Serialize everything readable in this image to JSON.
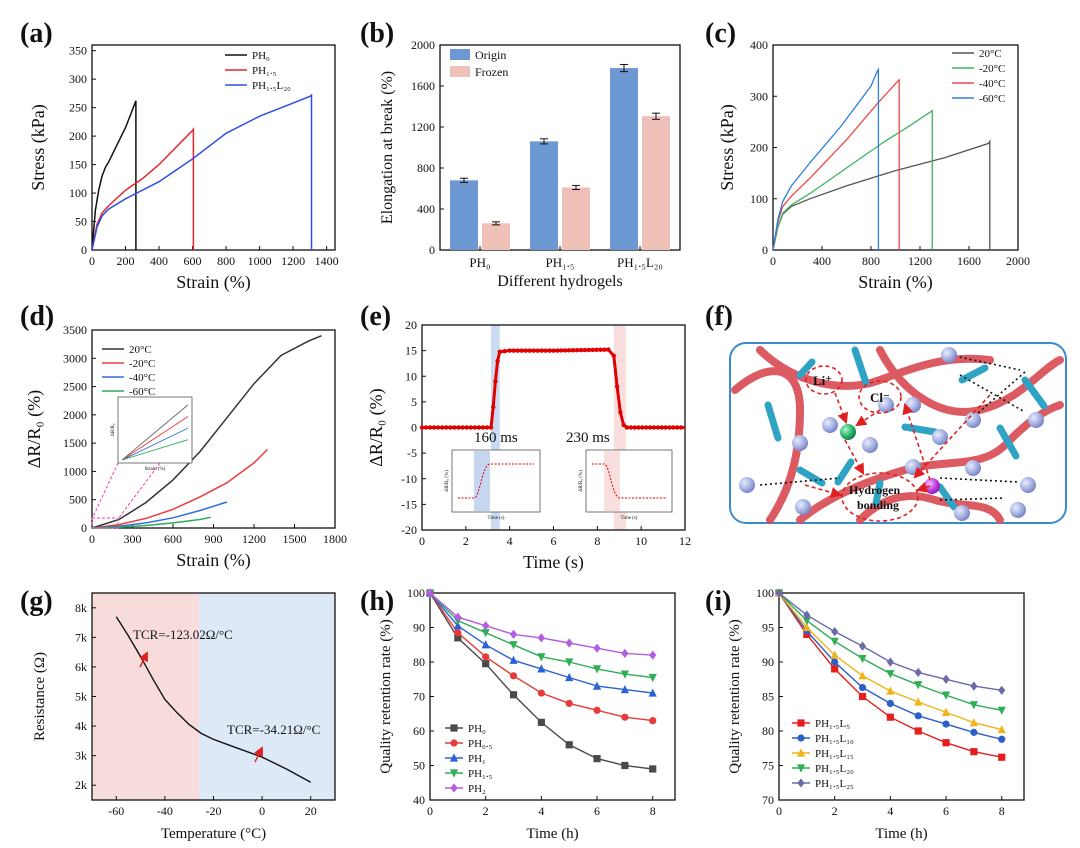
{
  "chart_data": [
    {
      "panel": "(a)",
      "type": "line",
      "xlabel": "Strain (%)",
      "ylabel": "Stress (kPa)",
      "xlim": [
        0,
        1450
      ],
      "ylim": [
        0,
        360
      ],
      "xticks": [
        "0",
        "200",
        "400",
        "600",
        "800",
        "1000",
        "1200",
        "1400"
      ],
      "yticks": [
        "0",
        "50",
        "100",
        "150",
        "200",
        "250",
        "300",
        "350"
      ],
      "series": [
        {
          "name": "PH₀",
          "color": "#111111",
          "x": [
            0,
            20,
            40,
            60,
            80,
            100,
            150,
            200,
            240,
            262,
            262
          ],
          "y": [
            0,
            70,
            105,
            130,
            145,
            155,
            185,
            215,
            245,
            262,
            0
          ]
        },
        {
          "name": "PH₁.₅",
          "color": "#e8262d",
          "x": [
            0,
            30,
            60,
            100,
            200,
            300,
            400,
            500,
            560,
            600,
            605,
            605
          ],
          "y": [
            0,
            45,
            65,
            78,
            105,
            125,
            150,
            180,
            198,
            210,
            212,
            0
          ]
        },
        {
          "name": "PH₁.₅L₂₀",
          "color": "#2e4fe6",
          "x": [
            0,
            30,
            60,
            100,
            200,
            400,
            600,
            800,
            1000,
            1200,
            1300,
            1310,
            1310
          ],
          "y": [
            0,
            40,
            60,
            72,
            90,
            120,
            160,
            205,
            235,
            258,
            270,
            272,
            0
          ]
        }
      ]
    },
    {
      "panel": "(b)",
      "type": "bar",
      "xlabel": "Different hydrogels",
      "ylabel": "Elongation at break (%)",
      "categories": [
        "PH₀",
        "PH₁.₅",
        "PH₁.₅L₂₀"
      ],
      "ylim": [
        0,
        2000
      ],
      "yticks": [
        "0",
        "400",
        "800",
        "1200",
        "1600",
        "2000"
      ],
      "series": [
        {
          "name": "Origin",
          "color": "#6e98d2",
          "values": [
            680,
            1060,
            1775
          ],
          "errors": [
            20,
            25,
            35
          ]
        },
        {
          "name": "Frozen",
          "color": "#efc0b8",
          "values": [
            260,
            610,
            1305
          ],
          "errors": [
            15,
            20,
            30
          ]
        }
      ]
    },
    {
      "panel": "(c)",
      "type": "line",
      "xlabel": "Strain (%)",
      "ylabel": "Stress (kPa)",
      "xlim": [
        0,
        2000
      ],
      "ylim": [
        0,
        400
      ],
      "xticks": [
        "0",
        "400",
        "800",
        "1200",
        "1600",
        "2000"
      ],
      "yticks": [
        "0",
        "100",
        "200",
        "300",
        "400"
      ],
      "series": [
        {
          "name": "20°C",
          "color": "#555555",
          "x": [
            0,
            40,
            80,
            150,
            300,
            600,
            1000,
            1400,
            1760,
            1770,
            1770
          ],
          "y": [
            0,
            45,
            70,
            85,
            100,
            125,
            155,
            180,
            208,
            212,
            0
          ]
        },
        {
          "name": "-20°C",
          "color": "#3cb55b",
          "x": [
            0,
            40,
            80,
            150,
            300,
            600,
            900,
            1100,
            1290,
            1300,
            1300
          ],
          "y": [
            0,
            45,
            72,
            88,
            110,
            160,
            210,
            240,
            270,
            272,
            0
          ]
        },
        {
          "name": "-40°C",
          "color": "#ee4848",
          "x": [
            0,
            40,
            80,
            150,
            300,
            600,
            850,
            1020,
            1030,
            1030
          ],
          "y": [
            0,
            55,
            85,
            105,
            140,
            215,
            285,
            330,
            332,
            0
          ]
        },
        {
          "name": "-60°C",
          "color": "#2f7fe0",
          "x": [
            0,
            40,
            80,
            150,
            300,
            550,
            800,
            850,
            860,
            860
          ],
          "y": [
            0,
            60,
            95,
            125,
            170,
            240,
            320,
            348,
            352,
            0
          ]
        }
      ]
    },
    {
      "panel": "(d)",
      "type": "line",
      "xlabel": "Strain (%)",
      "ylabel": "ΔR/R₀ (%)",
      "xlim": [
        0,
        1800
      ],
      "ylim": [
        0,
        3500
      ],
      "xticks": [
        "0",
        "300",
        "600",
        "900",
        "1200",
        "1500",
        "1800"
      ],
      "yticks": [
        "0",
        "500",
        "1000",
        "1500",
        "2000",
        "2500",
        "3000",
        "3500"
      ],
      "series": [
        {
          "name": "20°C",
          "color": "#333333",
          "x": [
            0,
            200,
            400,
            600,
            800,
            1000,
            1200,
            1400,
            1600,
            1700
          ],
          "y": [
            0,
            150,
            450,
            850,
            1350,
            1950,
            2550,
            3050,
            3300,
            3400
          ]
        },
        {
          "name": "-20°C",
          "color": "#ee3b3b",
          "x": [
            0,
            200,
            400,
            600,
            800,
            1000,
            1200,
            1300
          ],
          "y": [
            0,
            60,
            170,
            330,
            550,
            800,
            1150,
            1390
          ]
        },
        {
          "name": "-40°C",
          "color": "#2f6fe0",
          "x": [
            0,
            200,
            400,
            600,
            800,
            1000
          ],
          "y": [
            0,
            30,
            90,
            180,
            310,
            460
          ]
        },
        {
          "name": "-60°C",
          "color": "#2ea95a",
          "x": [
            0,
            200,
            400,
            600,
            800,
            880
          ],
          "y": [
            0,
            15,
            45,
            90,
            150,
            190
          ]
        }
      ],
      "inset": {
        "xlabel": "Strain (%)",
        "ylabel": "ΔR/R₀"
      }
    },
    {
      "panel": "(e)",
      "type": "line",
      "xlabel": "Time (s)",
      "ylabel": "ΔR/R₀ (%)",
      "xlim": [
        0,
        12
      ],
      "ylim": [
        -20,
        20
      ],
      "xticks": [
        "0",
        "2",
        "4",
        "6",
        "8",
        "10",
        "12"
      ],
      "yticks": [
        "-20",
        "-15",
        "-10",
        "-5",
        "0",
        "5",
        "10",
        "15",
        "20"
      ],
      "series": [
        {
          "name": "response",
          "color": "#e00000",
          "x": [
            0,
            3.15,
            3.25,
            3.35,
            3.45,
            3.55,
            4,
            6,
            8.5,
            8.75,
            8.9,
            9.05,
            9.2,
            9.35,
            12
          ],
          "y": [
            0,
            0,
            4,
            9,
            13,
            14.8,
            15,
            15,
            15.2,
            14,
            8,
            3,
            0.5,
            0,
            0
          ]
        }
      ],
      "annotations": [
        "160 ms",
        "230 ms"
      ],
      "insets": [
        {
          "xlabel": "Time (s)",
          "ylabel": "ΔR/R₀ (%)"
        },
        {
          "xlabel": "Time (s)",
          "ylabel": "ΔR/R₀ (%)"
        }
      ]
    },
    {
      "panel": "(g)",
      "type": "line",
      "xlabel": "Temperature (°C)",
      "ylabel": "Resistance (Ω)",
      "xlim": [
        -70,
        30
      ],
      "ylim": [
        1500,
        8500
      ],
      "xticks": [
        "-60",
        "-40",
        "-20",
        "0",
        "20"
      ],
      "yticks": [
        "2k",
        "3k",
        "4k",
        "5k",
        "6k",
        "7k",
        "8k"
      ],
      "series": [
        {
          "name": "resistance",
          "color": "#111111",
          "x": [
            -60,
            -55,
            -50,
            -45,
            -40,
            -35,
            -30,
            -25,
            -20,
            -10,
            0,
            10,
            20
          ],
          "y": [
            7700,
            7050,
            6350,
            5600,
            4900,
            4450,
            4050,
            3750,
            3550,
            3250,
            2950,
            2550,
            2100
          ]
        }
      ],
      "annotations": [
        "TCR=-123.02Ω/°C",
        "TCR=-34.21Ω/°C"
      ]
    },
    {
      "panel": "(h)",
      "type": "line",
      "xlabel": "Time (h)",
      "ylabel": "Quality retention rate (%)",
      "xlim": [
        0,
        8.8
      ],
      "ylim": [
        40,
        100
      ],
      "xticks": [
        "0",
        "2",
        "4",
        "6",
        "8"
      ],
      "yticks": [
        "40",
        "50",
        "60",
        "70",
        "80",
        "90",
        "100"
      ],
      "series": [
        {
          "name": "PH₀",
          "color": "#4a4a4a",
          "marker": "square",
          "x": [
            0,
            1,
            2,
            3,
            4,
            5,
            6,
            7,
            8
          ],
          "y": [
            100,
            87,
            79.5,
            70.5,
            62.5,
            56,
            52,
            50,
            49
          ]
        },
        {
          "name": "PH₀.₅",
          "color": "#e83a3a",
          "marker": "circle",
          "x": [
            0,
            1,
            2,
            3,
            4,
            5,
            6,
            7,
            8
          ],
          "y": [
            100,
            88.5,
            81.5,
            76,
            71,
            68,
            66,
            64,
            63
          ]
        },
        {
          "name": "PH₁",
          "color": "#2b62d8",
          "marker": "triangle",
          "x": [
            0,
            1,
            2,
            3,
            4,
            5,
            6,
            7,
            8
          ],
          "y": [
            100,
            90.5,
            85,
            80.5,
            78,
            75.5,
            73,
            72,
            71
          ]
        },
        {
          "name": "PH₁.₅",
          "color": "#2fae55",
          "marker": "triangle-down",
          "x": [
            0,
            1,
            2,
            3,
            4,
            5,
            6,
            7,
            8
          ],
          "y": [
            100,
            92,
            88.5,
            85,
            81.5,
            80,
            78,
            76.5,
            75.5
          ]
        },
        {
          "name": "PH₂",
          "color": "#b35ce0",
          "marker": "diamond",
          "x": [
            0,
            1,
            2,
            3,
            4,
            5,
            6,
            7,
            8
          ],
          "y": [
            100,
            93,
            90.5,
            88,
            87,
            85.5,
            84,
            82.5,
            82
          ]
        }
      ]
    },
    {
      "panel": "(i)",
      "type": "line",
      "xlabel": "Time (h)",
      "ylabel": "Quality retention rate (%)",
      "xlim": [
        0,
        8.8
      ],
      "ylim": [
        70,
        100
      ],
      "xticks": [
        "0",
        "2",
        "4",
        "6",
        "8"
      ],
      "yticks": [
        "70",
        "75",
        "80",
        "85",
        "90",
        "95",
        "100"
      ],
      "series": [
        {
          "name": "PH₁.₅L₅",
          "color": "#e51e1e",
          "marker": "square",
          "x": [
            0,
            1,
            2,
            3,
            4,
            5,
            6,
            7,
            8
          ],
          "y": [
            100,
            94,
            89,
            85,
            82,
            80,
            78.3,
            77,
            76.2
          ]
        },
        {
          "name": "PH₁.₅L₁₀",
          "color": "#2c5fc9",
          "marker": "circle",
          "x": [
            0,
            1,
            2,
            3,
            4,
            5,
            6,
            7,
            8
          ],
          "y": [
            100,
            94.5,
            90,
            86.3,
            84,
            82.2,
            81,
            79.8,
            78.8
          ]
        },
        {
          "name": "PH₁.₅L₁₅",
          "color": "#f0b419",
          "marker": "triangle",
          "x": [
            0,
            1,
            2,
            3,
            4,
            5,
            6,
            7,
            8
          ],
          "y": [
            100,
            95,
            91,
            88,
            85.8,
            84.2,
            82.7,
            81.2,
            80.2
          ]
        },
        {
          "name": "PH₁.₅L₂₀",
          "color": "#2fae55",
          "marker": "triangle-down",
          "x": [
            0,
            1,
            2,
            3,
            4,
            5,
            6,
            7,
            8
          ],
          "y": [
            100,
            96,
            93,
            90.5,
            88.3,
            86.7,
            85.2,
            83.8,
            83
          ]
        },
        {
          "name": "PH₁.₅L₂₅",
          "color": "#6c6aa8",
          "marker": "diamond",
          "x": [
            0,
            1,
            2,
            3,
            4,
            5,
            6,
            7,
            8
          ],
          "y": [
            100,
            96.8,
            94.4,
            92.3,
            90,
            88.5,
            87.5,
            86.5,
            85.9
          ]
        }
      ]
    }
  ],
  "panel_labels": [
    "(a)",
    "(b)",
    "(c)",
    "(d)",
    "(e)",
    "(f)",
    "(g)",
    "(h)",
    "(i)"
  ],
  "schematic_f": {
    "labels": [
      "Li⁺",
      "Cl⁻",
      "Hydrogen",
      "bonding"
    ]
  }
}
